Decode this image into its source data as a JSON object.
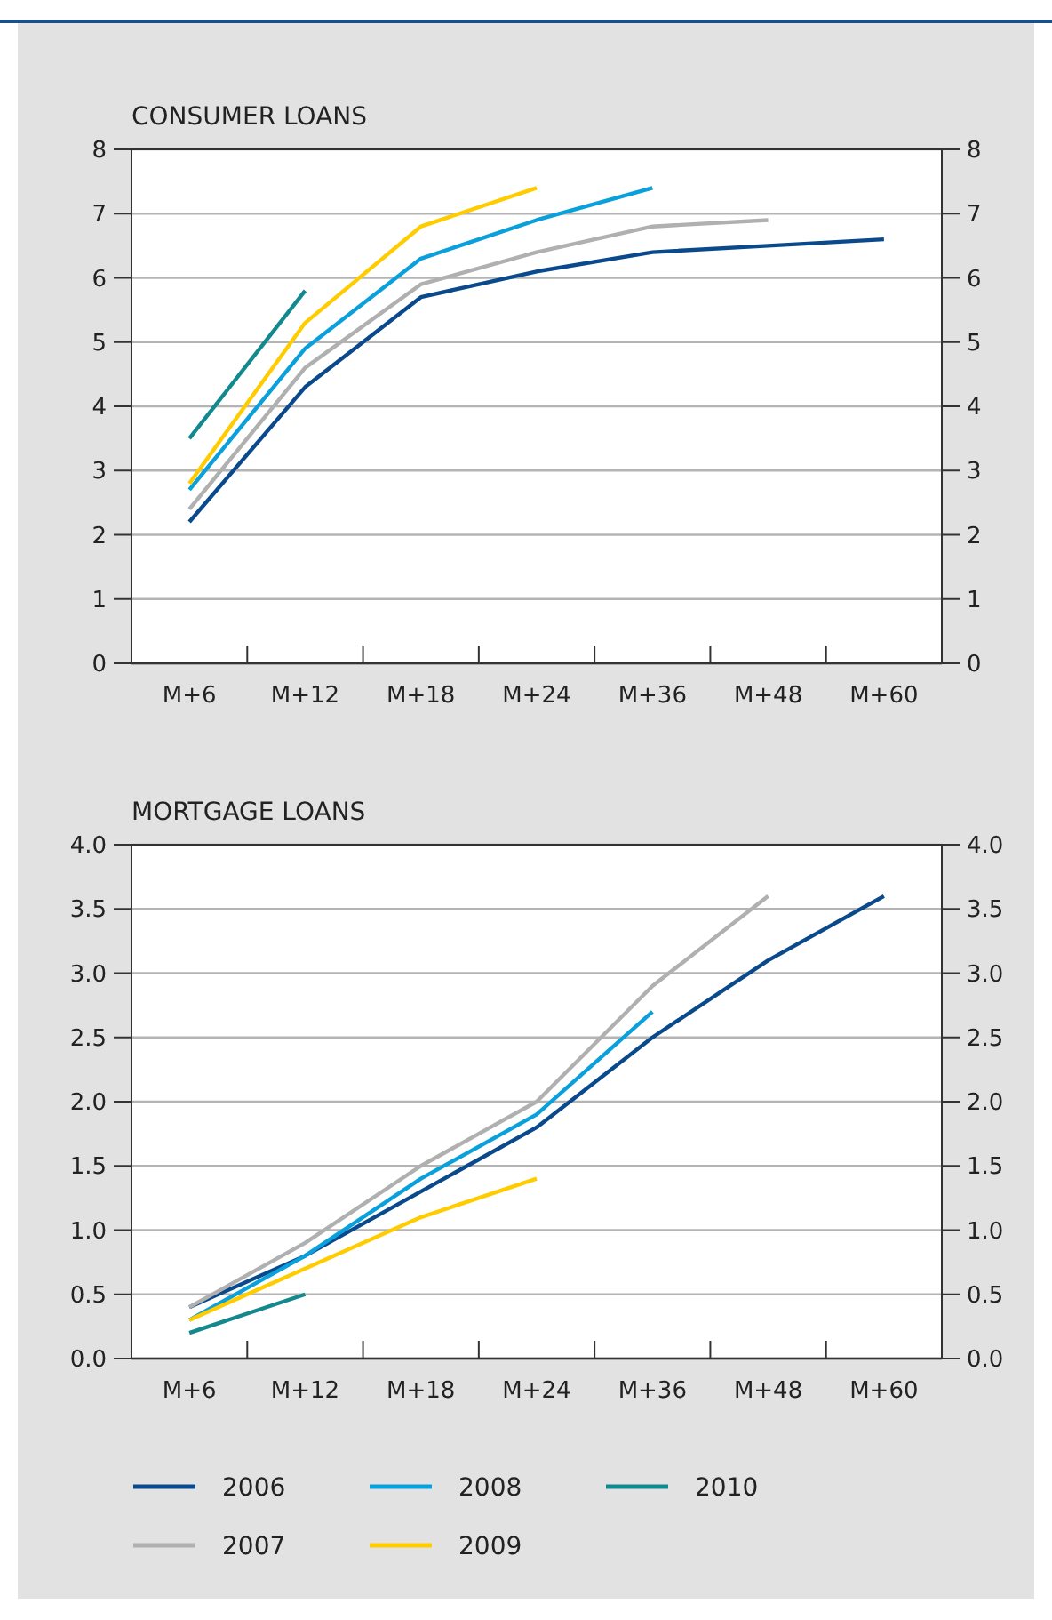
{
  "chart_data": [
    {
      "type": "line",
      "title": "CONSUMER LOANS",
      "categories": [
        "M+6",
        "M+12",
        "M+18",
        "M+24",
        "M+36",
        "M+48",
        "M+60"
      ],
      "ylim": [
        0,
        8
      ],
      "yticks": [
        0,
        1,
        2,
        3,
        4,
        5,
        6,
        7,
        8
      ],
      "y2lim": [
        0,
        8
      ],
      "y2ticks": [
        0,
        1,
        2,
        3,
        4,
        5,
        6,
        7,
        8
      ],
      "grid": "y",
      "legend": false,
      "series": [
        {
          "color": "#0a4a8c",
          "values": [
            2.2,
            4.3,
            5.7,
            6.1,
            6.4,
            6.5,
            6.6
          ]
        },
        {
          "color": "#b0b0b0",
          "values": [
            2.4,
            4.6,
            5.9,
            6.4,
            6.8,
            6.9,
            null
          ]
        },
        {
          "color": "#0aa0dc",
          "values": [
            2.7,
            4.9,
            6.3,
            6.9,
            7.4,
            null,
            null
          ]
        },
        {
          "color": "#ffcc00",
          "values": [
            2.8,
            5.3,
            6.8,
            7.4,
            null,
            null,
            null
          ]
        },
        {
          "color": "#12898e",
          "values": [
            3.5,
            5.8,
            null,
            null,
            null,
            null,
            null
          ]
        }
      ]
    },
    {
      "type": "line",
      "title": "MORTGAGE LOANS",
      "categories": [
        "M+6",
        "M+12",
        "M+18",
        "M+24",
        "M+36",
        "M+48",
        "M+60"
      ],
      "ylim": [
        0,
        4
      ],
      "yticks": [
        {
          "value": 0,
          "label": "0.0"
        },
        {
          "value": 0.5,
          "label": "0.5"
        },
        {
          "value": 1,
          "label": "1.0"
        },
        {
          "value": 1.5,
          "label": "1.5"
        },
        {
          "value": 2,
          "label": "2.0"
        },
        {
          "value": 2.5,
          "label": "2.5"
        },
        {
          "value": 3,
          "label": "3.0"
        },
        {
          "value": 3.5,
          "label": "3.5"
        },
        {
          "value": 4,
          "label": "4.0"
        }
      ],
      "y2lim": [
        0,
        4
      ],
      "y2ticks": [
        {
          "value": 0,
          "label": "0.0"
        },
        {
          "value": 0.5,
          "label": "0.5"
        },
        {
          "value": 1,
          "label": "1.0"
        },
        {
          "value": 1.5,
          "label": "1.5"
        },
        {
          "value": 2,
          "label": "2.0"
        },
        {
          "value": 2.5,
          "label": "2.5"
        },
        {
          "value": 3,
          "label": "3.0"
        },
        {
          "value": 3.5,
          "label": "3.5"
        },
        {
          "value": 4,
          "label": "4.0"
        }
      ],
      "grid": "y",
      "legend": "bottom",
      "series": [
        {
          "name": "2006",
          "color": "#0a4a8c",
          "values": [
            0.4,
            0.8,
            1.3,
            1.8,
            2.5,
            3.1,
            3.6
          ]
        },
        {
          "name": "2007",
          "color": "#b0b0b0",
          "values": [
            0.4,
            0.9,
            1.5,
            2.0,
            2.9,
            3.6,
            null
          ]
        },
        {
          "name": "2008",
          "color": "#0aa0dc",
          "values": [
            0.3,
            0.8,
            1.4,
            1.9,
            2.7,
            null,
            null
          ]
        },
        {
          "name": "2009",
          "color": "#ffcc00",
          "values": [
            0.3,
            0.7,
            1.1,
            1.4,
            null,
            null,
            null
          ]
        },
        {
          "name": "2010",
          "color": "#12898e",
          "values": [
            0.2,
            0.5,
            null,
            null,
            null,
            null,
            null
          ]
        }
      ]
    }
  ]
}
